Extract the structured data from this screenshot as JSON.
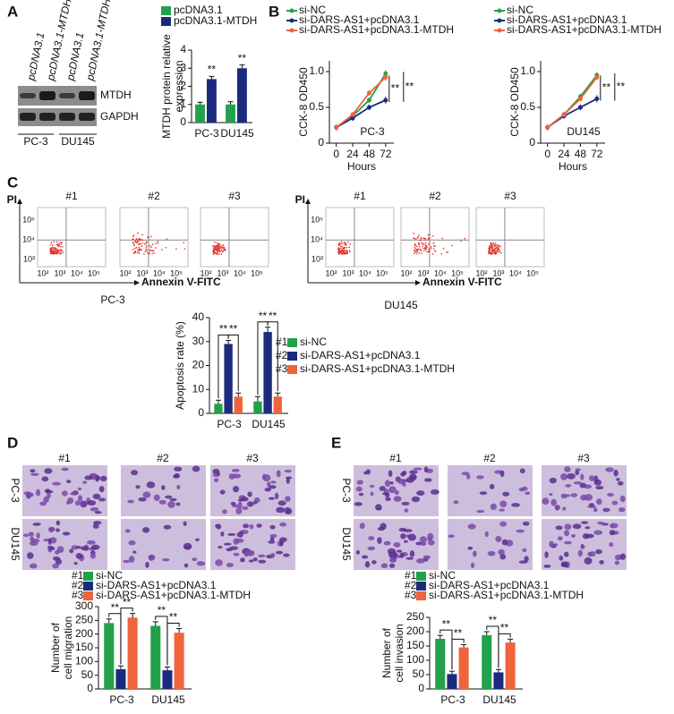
{
  "panel_labels": [
    "A",
    "B",
    "C",
    "D",
    "E"
  ],
  "blot": {
    "lanes": [
      "pcDNA3.1",
      "pcDNA3.1-MTDH",
      "pcDNA3.1",
      "pcDNA3.1-MTDH"
    ],
    "rows": [
      "MTDH",
      "GAPDH"
    ],
    "groups": [
      "PC-3",
      "DU145"
    ]
  },
  "flow": [
    {
      "caption": "PC-3",
      "plots": [
        "#1",
        "#2",
        "#3"
      ],
      "y_label": "PI",
      "x_label": "Annexin V-FITC",
      "xticks": [
        "10²",
        "10³",
        "10⁴",
        "10⁵"
      ],
      "yticks": [
        "10³",
        "10⁴",
        "10⁵"
      ]
    },
    {
      "caption": "DU145",
      "plots": [
        "#1",
        "#2",
        "#3"
      ],
      "y_label": "PI",
      "x_label": "Annexin V-FITC",
      "xticks": [
        "10²",
        "10³",
        "10⁴",
        "10⁵"
      ],
      "yticks": [
        "10³",
        "10⁴",
        "10⁵"
      ]
    }
  ],
  "migration_images": {
    "columns": [
      "#1",
      "#2",
      "#3"
    ],
    "rows": [
      "PC-3",
      "DU145"
    ]
  },
  "invasion_images": {
    "columns": [
      "#1",
      "#2",
      "#3"
    ],
    "rows": [
      "PC-3",
      "DU145"
    ]
  },
  "chart_data": [
    {
      "type": "bar",
      "ylabel": [
        "MTDH protein relative",
        "expression"
      ],
      "categories": [
        "PC-3",
        "DU145"
      ],
      "series": [
        {
          "name": "pcDNA3.1",
          "color": "#22a14a",
          "values": [
            1.0,
            1.0
          ],
          "errors": [
            0.12,
            0.15
          ]
        },
        {
          "name": "pcDNA3.1-MTDH",
          "color": "#1c2a7e",
          "values": [
            2.4,
            3.0
          ],
          "errors": [
            0.15,
            0.18
          ]
        }
      ],
      "ylim": [
        0,
        4
      ],
      "yticks": [
        0,
        1,
        2,
        3,
        4
      ],
      "annotations": [
        "**",
        "**"
      ]
    },
    {
      "type": "line",
      "ylabel": [
        "CCK-8 OD450"
      ],
      "xlabel": "Hours",
      "label": "PC-3",
      "x": [
        0,
        24,
        48,
        72
      ],
      "series": [
        {
          "name": "si-NC",
          "color": "#22a14a",
          "values": [
            0.22,
            0.38,
            0.6,
            0.97
          ],
          "errors": [
            0.04,
            0.04,
            0.04,
            0.05
          ]
        },
        {
          "name": "si-DARS-AS1+pcDNA3.1",
          "color": "#1c2a7e",
          "values": [
            0.22,
            0.35,
            0.5,
            0.6
          ],
          "errors": [
            0.04,
            0.04,
            0.04,
            0.05
          ]
        },
        {
          "name": "si-DARS-AS1+pcDNA3.1-MTDH",
          "color": "#f0643c",
          "values": [
            0.22,
            0.4,
            0.7,
            0.92
          ],
          "errors": [
            0.04,
            0.04,
            0.04,
            0.05
          ]
        }
      ],
      "xlim": [
        -10,
        84
      ],
      "xticks": [
        0,
        24,
        48,
        72
      ],
      "ylim": [
        0,
        1.15
      ],
      "yticks": [
        0,
        0.5,
        {
          "value": 1,
          "label": "1.0"
        }
      ],
      "annotations": [
        "**",
        "**"
      ]
    },
    {
      "type": "line",
      "ylabel": [
        "CCK-8 OD450"
      ],
      "xlabel": "Hours",
      "label": "DU145",
      "x": [
        0,
        24,
        48,
        72
      ],
      "series": [
        {
          "name": "si-NC",
          "color": "#22a14a",
          "values": [
            0.22,
            0.4,
            0.65,
            0.95
          ],
          "errors": [
            0.04,
            0.04,
            0.04,
            0.04
          ]
        },
        {
          "name": "si-DARS-AS1+pcDNA3.1",
          "color": "#1c2a7e",
          "values": [
            0.22,
            0.38,
            0.5,
            0.62
          ],
          "errors": [
            0.04,
            0.04,
            0.04,
            0.05
          ]
        },
        {
          "name": "si-DARS-AS1+pcDNA3.1-MTDH",
          "color": "#f0643c",
          "values": [
            0.22,
            0.4,
            0.62,
            0.92
          ],
          "errors": [
            0.04,
            0.04,
            0.04,
            0.04
          ]
        }
      ],
      "xlim": [
        -10,
        84
      ],
      "xticks": [
        0,
        24,
        48,
        72
      ],
      "ylim": [
        0,
        1.15
      ],
      "yticks": [
        0,
        0.5,
        {
          "value": 1,
          "label": "1.0"
        }
      ],
      "annotations": [
        "**",
        "**"
      ]
    },
    {
      "type": "bar",
      "ylabel": [
        "Apoptosis rate (%)"
      ],
      "categories": [
        "PC-3",
        "DU145"
      ],
      "series": [
        {
          "tag": "#1",
          "name": "si-NC",
          "color": "#22a14a",
          "values": [
            4,
            5
          ],
          "errors": [
            1.5,
            2
          ]
        },
        {
          "tag": "#2",
          "name": "si-DARS-AS1+pcDNA3.1",
          "color": "#1c2a7e",
          "values": [
            29,
            34
          ],
          "errors": [
            1.5,
            2
          ]
        },
        {
          "tag": "#3",
          "name": "si-DARS-AS1+pcDNA3.1-MTDH",
          "color": "#f0643c",
          "values": [
            7,
            7
          ],
          "errors": [
            1.5,
            1.5
          ]
        }
      ],
      "ylim": [
        0,
        40
      ],
      "yticks": [
        0,
        10,
        20,
        30,
        40
      ],
      "annotations": [
        "**",
        "**",
        "**",
        "**"
      ]
    },
    {
      "type": "bar",
      "ylabel": [
        "Number of",
        "cell migration"
      ],
      "categories": [
        "PC-3",
        "DU145"
      ],
      "series": [
        {
          "tag": "#1",
          "name": "si-NC",
          "color": "#22a14a",
          "values": [
            240,
            230
          ],
          "errors": [
            15,
            15
          ]
        },
        {
          "tag": "#2",
          "name": "si-DARS-AS1+pcDNA3.1",
          "color": "#1c2a7e",
          "values": [
            72,
            68
          ],
          "errors": [
            12,
            12
          ]
        },
        {
          "tag": "#3",
          "name": "si-DARS-AS1+pcDNA3.1-MTDH",
          "color": "#f0643c",
          "values": [
            260,
            205
          ],
          "errors": [
            15,
            15
          ]
        }
      ],
      "ylim": [
        0,
        300
      ],
      "yticks": [
        0,
        50,
        100,
        150,
        200,
        250,
        300
      ],
      "annotations": [
        "**",
        "**",
        "**",
        "**"
      ]
    },
    {
      "type": "bar",
      "ylabel": [
        "Number of",
        "cell invasion"
      ],
      "categories": [
        "PC-3",
        "DU145"
      ],
      "series": [
        {
          "tag": "#1",
          "name": "si-NC",
          "color": "#22a14a",
          "values": [
            175,
            188
          ],
          "errors": [
            12,
            12
          ]
        },
        {
          "tag": "#2",
          "name": "si-DARS-AS1+pcDNA3.1",
          "color": "#1c2a7e",
          "values": [
            52,
            58
          ],
          "errors": [
            10,
            10
          ]
        },
        {
          "tag": "#3",
          "name": "si-DARS-AS1+pcDNA3.1-MTDH",
          "color": "#f0643c",
          "values": [
            145,
            162
          ],
          "errors": [
            10,
            12
          ]
        }
      ],
      "ylim": [
        0,
        250
      ],
      "yticks": [
        0,
        50,
        100,
        150,
        200,
        250
      ],
      "annotations": [
        "**",
        "**",
        "**",
        "**"
      ]
    }
  ]
}
